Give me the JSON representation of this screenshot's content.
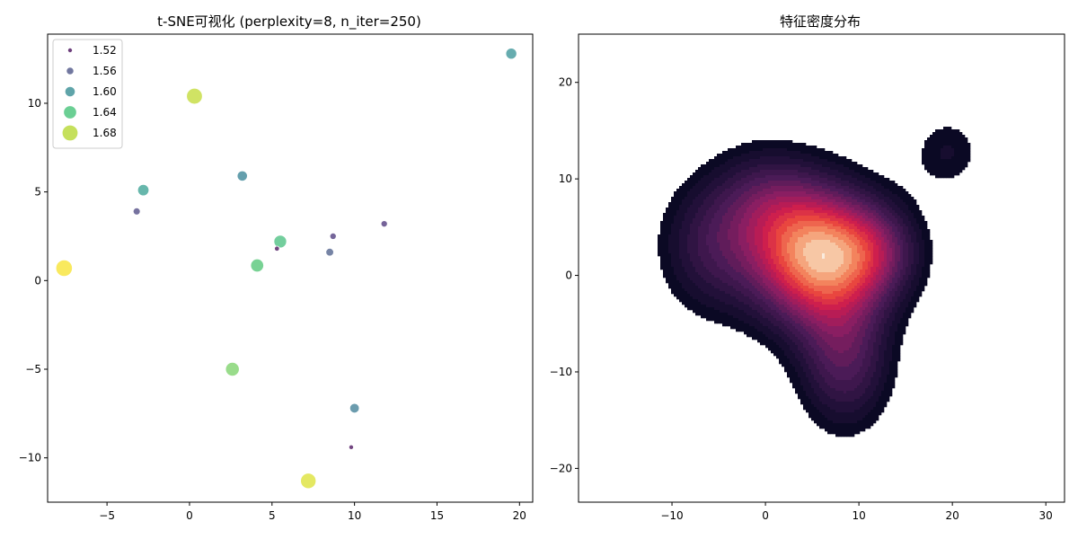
{
  "chart_data": [
    {
      "type": "scatter",
      "title": "t-SNE可视化 (perplexity=8, n_iter=250)",
      "xlabel": "",
      "ylabel": "",
      "xlim": [
        -8.6,
        20.8
      ],
      "ylim": [
        -12.5,
        13.9
      ],
      "xticks": [
        -5,
        0,
        5,
        10,
        15,
        20
      ],
      "yticks": [
        -10,
        -5,
        0,
        5,
        10
      ],
      "grid": false,
      "legend": {
        "placement": "top-left",
        "entries": [
          {
            "label": "1.52",
            "value": 1.52,
            "color": "#6d3f7c"
          },
          {
            "label": "1.56",
            "value": 1.56,
            "color": "#71779f"
          },
          {
            "label": "1.60",
            "value": 1.6,
            "color": "#5fa4a9"
          },
          {
            "label": "1.64",
            "value": 1.64,
            "color": "#6bcf94"
          },
          {
            "label": "1.68",
            "value": 1.68,
            "color": "#c5e05c"
          }
        ]
      },
      "points": [
        {
          "x": 19.5,
          "y": 12.8,
          "v": 1.61,
          "color": "#5ea8ab"
        },
        {
          "x": 0.3,
          "y": 10.4,
          "v": 1.68,
          "color": "#cde25c"
        },
        {
          "x": 3.2,
          "y": 5.9,
          "v": 1.6,
          "color": "#5c9aa9"
        },
        {
          "x": -2.8,
          "y": 5.1,
          "v": 1.615,
          "color": "#5fb3a8"
        },
        {
          "x": -3.2,
          "y": 3.9,
          "v": 1.555,
          "color": "#6f6a9a"
        },
        {
          "x": 11.8,
          "y": 3.2,
          "v": 1.545,
          "color": "#6e5b93"
        },
        {
          "x": 8.7,
          "y": 2.5,
          "v": 1.545,
          "color": "#6e5e95"
        },
        {
          "x": 5.5,
          "y": 2.2,
          "v": 1.635,
          "color": "#6ccb98"
        },
        {
          "x": 5.3,
          "y": 1.8,
          "v": 1.525,
          "color": "#6a3d79"
        },
        {
          "x": 8.5,
          "y": 1.6,
          "v": 1.565,
          "color": "#6f7da0"
        },
        {
          "x": -7.6,
          "y": 0.7,
          "v": 1.69,
          "color": "#f9e855"
        },
        {
          "x": 4.1,
          "y": 0.85,
          "v": 1.64,
          "color": "#71d08e"
        },
        {
          "x": 2.6,
          "y": -5.0,
          "v": 1.65,
          "color": "#94da85"
        },
        {
          "x": 10.0,
          "y": -7.2,
          "v": 1.59,
          "color": "#6397aa"
        },
        {
          "x": 9.8,
          "y": -9.4,
          "v": 1.52,
          "color": "#6b3c7a"
        },
        {
          "x": 7.2,
          "y": -11.3,
          "v": 1.675,
          "color": "#e3e75a"
        }
      ]
    },
    {
      "type": "heatmap",
      "title": "特征密度分布",
      "xlabel": "",
      "ylabel": "",
      "xlim": [
        -20,
        32
      ],
      "ylim": [
        -23.5,
        25
      ],
      "xticks": [
        -10,
        0,
        10,
        20,
        30
      ],
      "yticks": [
        -20,
        -10,
        0,
        10,
        20
      ],
      "grid": false,
      "colormap": "rocket",
      "kernel_centers": [
        {
          "x": 5.5,
          "y": 2.0,
          "w": 3.0,
          "sx": 5.0,
          "sy": 5.0
        },
        {
          "x": -6.0,
          "y": 3.0,
          "w": 0.9,
          "sx": 4.0,
          "sy": 5.0
        },
        {
          "x": 0.0,
          "y": 8.0,
          "w": 0.8,
          "sx": 4.0,
          "sy": 4.0
        },
        {
          "x": 8.5,
          "y": -9.0,
          "w": 1.2,
          "sx": 3.5,
          "sy": 5.0
        },
        {
          "x": 12.0,
          "y": 2.5,
          "w": 0.9,
          "sx": 3.5,
          "sy": 3.5
        },
        {
          "x": 19.5,
          "y": 12.8,
          "w": 0.55,
          "sx": 2.8,
          "sy": 2.8
        }
      ]
    }
  ]
}
